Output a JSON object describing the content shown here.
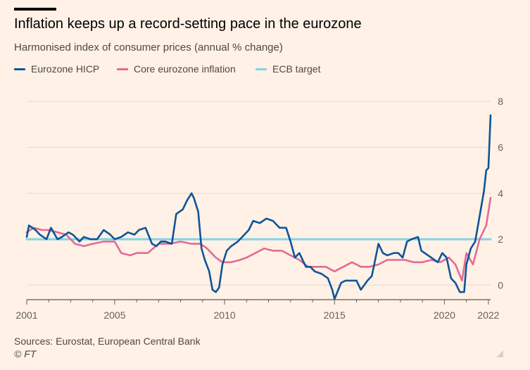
{
  "colors": {
    "background": "#fff1e5",
    "hicp": "#0f5499",
    "core": "#e26b96",
    "target": "#7fd3e6",
    "grid": "#e6d9ce",
    "tick": "#66605c"
  },
  "chart_data": {
    "type": "line",
    "title": "Inflation keeps up a record-setting pace in the eurozone",
    "subtitle": "Harmonised index of consumer prices (annual % change)",
    "ylim": [
      -0.6,
      9.2
    ],
    "xlim": [
      2001,
      2022.1
    ],
    "ytick_values": [
      0,
      2,
      4,
      6,
      8
    ],
    "yticks": [
      "0",
      "2",
      "4",
      "6",
      "8"
    ],
    "xtick_values": [
      2001,
      2005,
      2010,
      2015,
      2020,
      2022
    ],
    "xticks": [
      "2001",
      "2005",
      "2010",
      "2015",
      "2020",
      "2022"
    ],
    "legend_position": "top-left",
    "series": [
      {
        "name": "Eurozone HICP",
        "key": "hicp",
        "x": [
          2001.0,
          2001.1,
          2001.4,
          2001.6,
          2001.9,
          2002.1,
          2002.4,
          2002.6,
          2002.9,
          2003.1,
          2003.4,
          2003.6,
          2003.9,
          2004.2,
          2004.5,
          2004.8,
          2005.0,
          2005.3,
          2005.6,
          2005.9,
          2006.1,
          2006.4,
          2006.7,
          2006.9,
          2007.1,
          2007.3,
          2007.6,
          2007.8,
          2007.95,
          2008.1,
          2008.3,
          2008.5,
          2008.6,
          2008.8,
          2008.95,
          2009.1,
          2009.3,
          2009.45,
          2009.6,
          2009.75,
          2009.9,
          2010.1,
          2010.3,
          2010.6,
          2010.9,
          2011.1,
          2011.3,
          2011.6,
          2011.9,
          2012.2,
          2012.5,
          2012.8,
          2013.0,
          2013.2,
          2013.4,
          2013.7,
          2013.9,
          2014.1,
          2014.4,
          2014.7,
          2014.9,
          2015.0,
          2015.3,
          2015.5,
          2015.8,
          2016.0,
          2016.2,
          2016.5,
          2016.7,
          2016.85,
          2017.0,
          2017.2,
          2017.4,
          2017.7,
          2017.9,
          2018.1,
          2018.3,
          2018.5,
          2018.8,
          2018.95,
          2019.1,
          2019.4,
          2019.7,
          2019.9,
          2020.1,
          2020.3,
          2020.5,
          2020.7,
          2020.9,
          2021.0,
          2021.2,
          2021.4,
          2021.6,
          2021.8,
          2021.9,
          2022.0,
          2022.1
        ],
        "y": [
          2.1,
          2.6,
          2.4,
          2.2,
          2.0,
          2.5,
          2.0,
          2.1,
          2.3,
          2.2,
          1.9,
          2.1,
          2.0,
          2.0,
          2.4,
          2.2,
          2.0,
          2.1,
          2.3,
          2.2,
          2.4,
          2.5,
          1.8,
          1.7,
          1.9,
          1.9,
          1.8,
          3.1,
          3.2,
          3.3,
          3.7,
          4.0,
          3.8,
          3.2,
          1.6,
          1.1,
          0.6,
          -0.2,
          -0.3,
          -0.1,
          0.9,
          1.5,
          1.7,
          1.9,
          2.2,
          2.4,
          2.8,
          2.7,
          2.9,
          2.8,
          2.5,
          2.5,
          1.9,
          1.2,
          1.4,
          0.8,
          0.8,
          0.6,
          0.5,
          0.3,
          -0.2,
          -0.6,
          0.1,
          0.2,
          0.2,
          0.2,
          -0.2,
          0.2,
          0.4,
          1.1,
          1.8,
          1.4,
          1.3,
          1.4,
          1.4,
          1.2,
          1.9,
          2.0,
          2.1,
          1.5,
          1.4,
          1.2,
          1.0,
          1.4,
          1.2,
          0.3,
          0.1,
          -0.3,
          -0.3,
          0.9,
          1.6,
          1.9,
          3.0,
          4.1,
          5.0,
          5.1,
          7.4
        ]
      },
      {
        "name": "Core eurozone inflation",
        "key": "core",
        "x": [
          2001.0,
          2001.3,
          2001.7,
          2002.0,
          2002.4,
          2002.8,
          2003.2,
          2003.6,
          2004.0,
          2004.5,
          2005.0,
          2005.3,
          2005.7,
          2006.0,
          2006.5,
          2007.0,
          2007.5,
          2008.0,
          2008.5,
          2008.9,
          2009.2,
          2009.6,
          2009.9,
          2010.3,
          2010.7,
          2011.0,
          2011.4,
          2011.8,
          2012.2,
          2012.6,
          2013.0,
          2013.4,
          2013.8,
          2014.2,
          2014.6,
          2015.0,
          2015.4,
          2015.8,
          2016.2,
          2016.6,
          2017.0,
          2017.4,
          2017.8,
          2018.2,
          2018.6,
          2019.0,
          2019.4,
          2019.8,
          2020.2,
          2020.5,
          2020.8,
          2021.0,
          2021.3,
          2021.6,
          2021.9,
          2022.1
        ],
        "y": [
          2.3,
          2.5,
          2.4,
          2.4,
          2.3,
          2.2,
          1.8,
          1.7,
          1.8,
          1.9,
          1.9,
          1.4,
          1.3,
          1.4,
          1.4,
          1.8,
          1.8,
          1.9,
          1.8,
          1.8,
          1.6,
          1.2,
          1.0,
          1.0,
          1.1,
          1.2,
          1.4,
          1.6,
          1.5,
          1.5,
          1.3,
          1.1,
          0.8,
          0.8,
          0.8,
          0.6,
          0.8,
          1.0,
          0.8,
          0.8,
          0.9,
          1.1,
          1.1,
          1.1,
          1.0,
          1.0,
          1.1,
          1.0,
          1.2,
          0.9,
          0.2,
          1.4,
          0.9,
          2.0,
          2.6,
          3.8
        ]
      },
      {
        "name": "ECB target",
        "key": "target",
        "x": [
          2001.0,
          2022.1
        ],
        "y": [
          2,
          2
        ]
      }
    ]
  },
  "footer": {
    "sources": "Sources: Eurostat, European Central Bank",
    "copyright": "© FT"
  }
}
